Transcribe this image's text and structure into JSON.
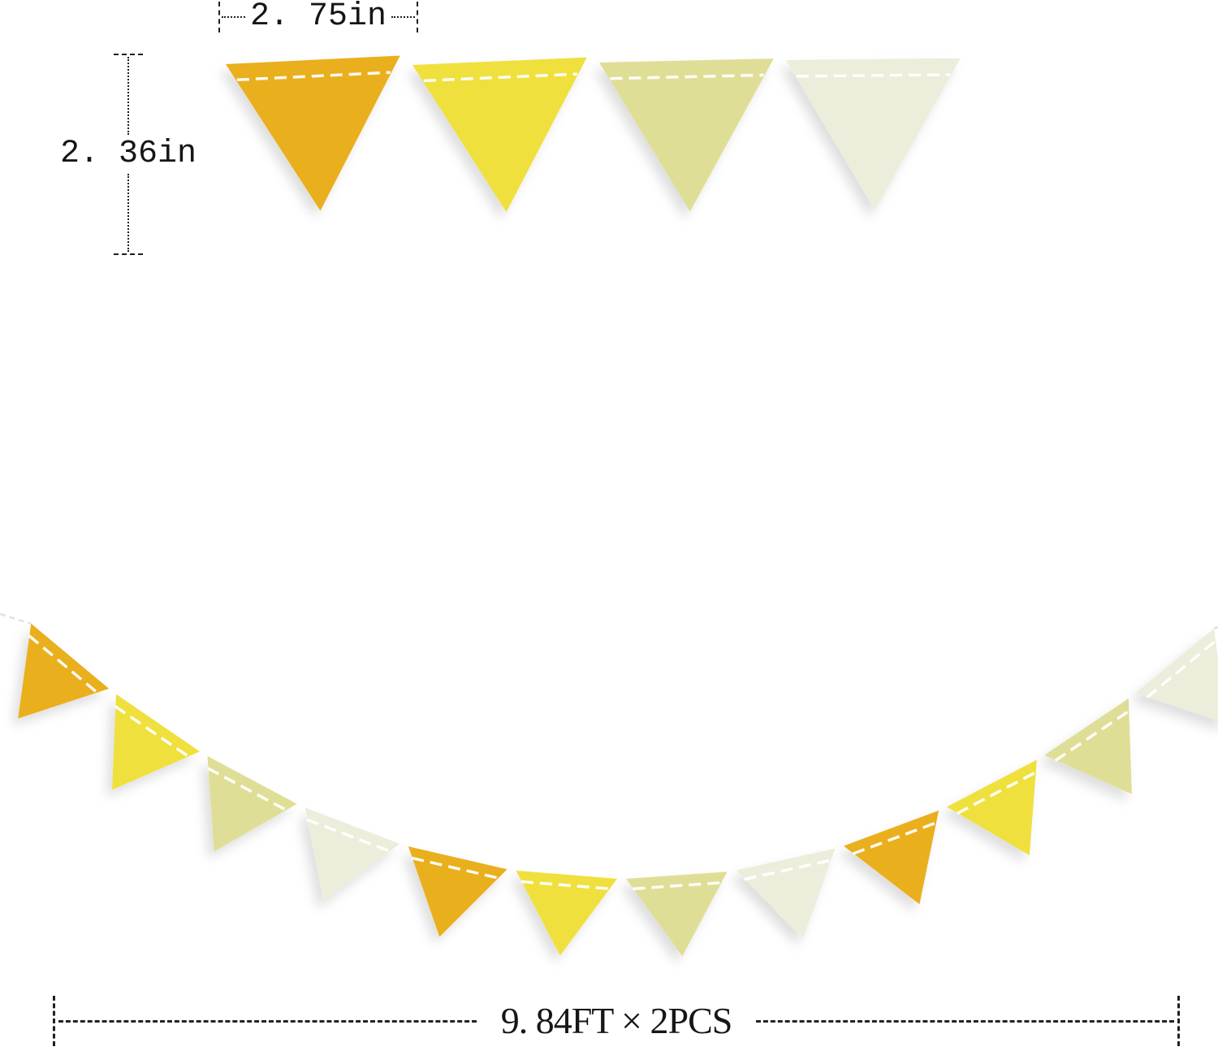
{
  "canvas": {
    "background": "#ffffff"
  },
  "palette": {
    "gold": "#EAAF1E",
    "yellow": "#EFE03C",
    "pale_yellow": "#DFDE96",
    "cream": "#EDEDDB",
    "stitch": "#FFFFFF",
    "measure_line": "#1F1F1F",
    "string": "#E2E2E2"
  },
  "measurements": {
    "top_width_label": "2. 75in",
    "left_height_label": "2. 36in",
    "bottom_length_label": "9. 84FT × 2PCS"
  },
  "top_row_flags": [
    "gold",
    "yellow",
    "pale_yellow",
    "cream"
  ],
  "garland_flags": [
    "gold",
    "yellow",
    "pale_yellow",
    "cream",
    "gold",
    "yellow",
    "pale_yellow",
    "cream",
    "gold",
    "yellow",
    "pale_yellow",
    "cream"
  ]
}
